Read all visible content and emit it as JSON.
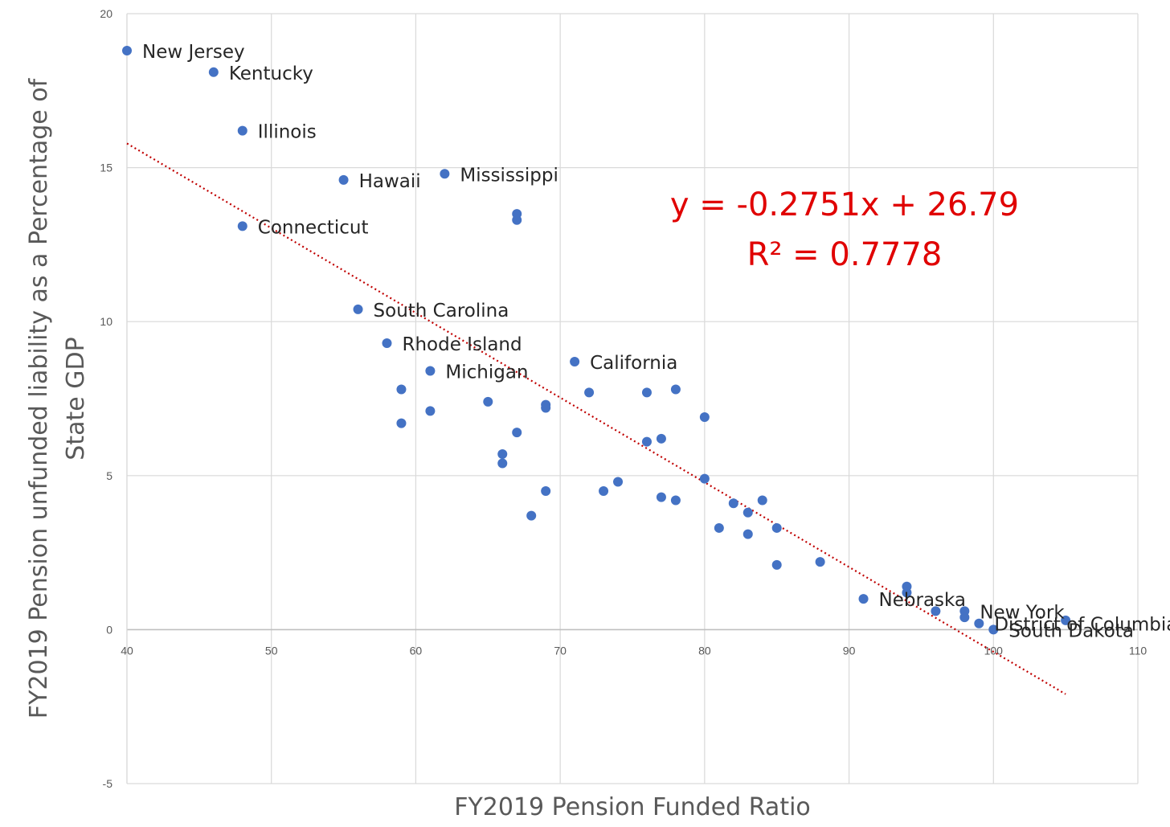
{
  "chart_data": {
    "type": "scatter",
    "xlabel": "FY2019 Pension Funded Ratio",
    "ylabel_lines": [
      "FY2019 Pension unfunded liability as a Percentage of",
      "State GDP"
    ],
    "xlim": [
      40,
      110
    ],
    "ylim": [
      -5,
      20
    ],
    "xticks": [
      40,
      50,
      60,
      70,
      80,
      90,
      100,
      110
    ],
    "yticks": [
      -5,
      0,
      5,
      10,
      15,
      20
    ],
    "grid": true,
    "marker_color": "#4472c4",
    "trendline": {
      "slope": -0.2751,
      "intercept": 26.79,
      "x_range": [
        40,
        105
      ],
      "color": "#c00000",
      "style": "dotted"
    },
    "annotation_lines": [
      "y = -0.2751x + 26.79",
      "R² = 0.7778"
    ],
    "points": [
      {
        "x": 40,
        "y": 18.8,
        "label": "New Jersey"
      },
      {
        "x": 46,
        "y": 18.1,
        "label": "Kentucky"
      },
      {
        "x": 48,
        "y": 16.2,
        "label": "Illinois"
      },
      {
        "x": 55,
        "y": 14.6,
        "label": "Hawaii"
      },
      {
        "x": 62,
        "y": 14.8,
        "label": "Mississippi"
      },
      {
        "x": 48,
        "y": 13.1,
        "label": "Connecticut"
      },
      {
        "x": 67,
        "y": 13.5,
        "label": ""
      },
      {
        "x": 67,
        "y": 13.3,
        "label": ""
      },
      {
        "x": 56,
        "y": 10.4,
        "label": "South Carolina"
      },
      {
        "x": 58,
        "y": 9.3,
        "label": "Rhode Island"
      },
      {
        "x": 61,
        "y": 8.4,
        "label": "Michigan"
      },
      {
        "x": 71,
        "y": 8.7,
        "label": "California"
      },
      {
        "x": 59,
        "y": 7.8,
        "label": ""
      },
      {
        "x": 59,
        "y": 6.7,
        "label": ""
      },
      {
        "x": 61,
        "y": 7.1,
        "label": ""
      },
      {
        "x": 65,
        "y": 7.4,
        "label": ""
      },
      {
        "x": 66,
        "y": 5.7,
        "label": ""
      },
      {
        "x": 66,
        "y": 5.4,
        "label": ""
      },
      {
        "x": 67,
        "y": 6.4,
        "label": ""
      },
      {
        "x": 68,
        "y": 3.7,
        "label": ""
      },
      {
        "x": 69,
        "y": 7.3,
        "label": ""
      },
      {
        "x": 69,
        "y": 7.2,
        "label": ""
      },
      {
        "x": 69,
        "y": 4.5,
        "label": ""
      },
      {
        "x": 72,
        "y": 7.7,
        "label": ""
      },
      {
        "x": 73,
        "y": 4.5,
        "label": ""
      },
      {
        "x": 74,
        "y": 4.8,
        "label": ""
      },
      {
        "x": 76,
        "y": 7.7,
        "label": ""
      },
      {
        "x": 76,
        "y": 6.1,
        "label": ""
      },
      {
        "x": 77,
        "y": 6.2,
        "label": ""
      },
      {
        "x": 77,
        "y": 4.3,
        "label": ""
      },
      {
        "x": 78,
        "y": 7.8,
        "label": ""
      },
      {
        "x": 78,
        "y": 4.2,
        "label": ""
      },
      {
        "x": 80,
        "y": 6.9,
        "label": ""
      },
      {
        "x": 80,
        "y": 4.9,
        "label": ""
      },
      {
        "x": 81,
        "y": 3.3,
        "label": ""
      },
      {
        "x": 82,
        "y": 4.1,
        "label": ""
      },
      {
        "x": 83,
        "y": 3.8,
        "label": ""
      },
      {
        "x": 83,
        "y": 3.1,
        "label": ""
      },
      {
        "x": 84,
        "y": 4.2,
        "label": ""
      },
      {
        "x": 85,
        "y": 3.3,
        "label": ""
      },
      {
        "x": 85,
        "y": 2.1,
        "label": ""
      },
      {
        "x": 88,
        "y": 2.2,
        "label": ""
      },
      {
        "x": 91,
        "y": 1.0,
        "label": "Nebraska"
      },
      {
        "x": 94,
        "y": 1.4,
        "label": ""
      },
      {
        "x": 94,
        "y": 1.2,
        "label": ""
      },
      {
        "x": 96,
        "y": 0.6,
        "label": ""
      },
      {
        "x": 98,
        "y": 0.6,
        "label": "New York"
      },
      {
        "x": 98,
        "y": 0.4,
        "label": ""
      },
      {
        "x": 99,
        "y": 0.2,
        "label": "District of Columbia"
      },
      {
        "x": 100,
        "y": 0.0,
        "label": "South Dakota"
      },
      {
        "x": 105,
        "y": 0.3,
        "label": ""
      }
    ]
  }
}
